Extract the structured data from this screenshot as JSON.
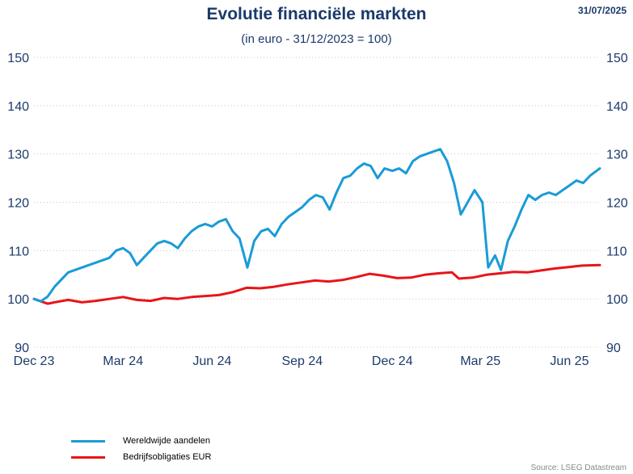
{
  "header": {
    "title": "Evolutie financiële markten",
    "subtitle": "(in euro - 31/12/2023 = 100)",
    "date": "31/07/2025"
  },
  "source": "Source: LSEG Datastream",
  "chart_data": {
    "type": "line",
    "title": "Evolutie financiële markten",
    "subtitle": "(in euro - 31/12/2023 = 100)",
    "xlabel": "",
    "ylabel": "",
    "x_tick_labels": [
      "Dec 23",
      "Mar 24",
      "Jun 24",
      "Sep 24",
      "Dec 24",
      "Mar 25",
      "Jun 25"
    ],
    "x_tick_dates": [
      "2023-12-31",
      "2024-03-31",
      "2024-06-30",
      "2024-09-30",
      "2024-12-31",
      "2025-03-31",
      "2025-06-30"
    ],
    "y_ticks": [
      90,
      100,
      110,
      120,
      130,
      140,
      150
    ],
    "ylim": [
      90,
      150
    ],
    "xlim": [
      "2023-12-31",
      "2025-07-31"
    ],
    "grid": "horizontal dotted",
    "right_axis": true,
    "legend_position": "bottom-left",
    "series": [
      {
        "name": "Wereldwijde aandelen",
        "color": "#1a9bd7",
        "points": [
          [
            "2023-12-31",
            100
          ],
          [
            "2024-01-07",
            99.5
          ],
          [
            "2024-01-14",
            100.5
          ],
          [
            "2024-01-21",
            102.5
          ],
          [
            "2024-01-28",
            104
          ],
          [
            "2024-02-04",
            105.5
          ],
          [
            "2024-02-11",
            106
          ],
          [
            "2024-02-18",
            106.5
          ],
          [
            "2024-02-25",
            107
          ],
          [
            "2024-03-03",
            107.5
          ],
          [
            "2024-03-10",
            108
          ],
          [
            "2024-03-17",
            108.5
          ],
          [
            "2024-03-24",
            110
          ],
          [
            "2024-03-31",
            110.5
          ],
          [
            "2024-04-07",
            109.5
          ],
          [
            "2024-04-14",
            107
          ],
          [
            "2024-04-21",
            108.5
          ],
          [
            "2024-04-28",
            110
          ],
          [
            "2024-05-05",
            111.5
          ],
          [
            "2024-05-12",
            112
          ],
          [
            "2024-05-19",
            111.5
          ],
          [
            "2024-05-26",
            110.5
          ],
          [
            "2024-06-02",
            112.5
          ],
          [
            "2024-06-09",
            114
          ],
          [
            "2024-06-16",
            115
          ],
          [
            "2024-06-23",
            115.5
          ],
          [
            "2024-06-30",
            115
          ],
          [
            "2024-07-07",
            116
          ],
          [
            "2024-07-14",
            116.5
          ],
          [
            "2024-07-21",
            114
          ],
          [
            "2024-07-28",
            112.5
          ],
          [
            "2024-08-05",
            106.5
          ],
          [
            "2024-08-12",
            112
          ],
          [
            "2024-08-19",
            114
          ],
          [
            "2024-08-26",
            114.5
          ],
          [
            "2024-09-02",
            113
          ],
          [
            "2024-09-09",
            115.5
          ],
          [
            "2024-09-16",
            117
          ],
          [
            "2024-09-23",
            118
          ],
          [
            "2024-09-30",
            119
          ],
          [
            "2024-10-07",
            120.5
          ],
          [
            "2024-10-14",
            121.5
          ],
          [
            "2024-10-21",
            121
          ],
          [
            "2024-10-28",
            118.5
          ],
          [
            "2024-11-04",
            122
          ],
          [
            "2024-11-11",
            125
          ],
          [
            "2024-11-18",
            125.5
          ],
          [
            "2024-11-25",
            127
          ],
          [
            "2024-12-02",
            128
          ],
          [
            "2024-12-09",
            127.5
          ],
          [
            "2024-12-16",
            125
          ],
          [
            "2024-12-23",
            127
          ],
          [
            "2024-12-31",
            126.5
          ],
          [
            "2025-01-07",
            127
          ],
          [
            "2025-01-14",
            126
          ],
          [
            "2025-01-21",
            128.5
          ],
          [
            "2025-01-28",
            129.5
          ],
          [
            "2025-02-04",
            130
          ],
          [
            "2025-02-11",
            130.5
          ],
          [
            "2025-02-18",
            131
          ],
          [
            "2025-02-25",
            128.5
          ],
          [
            "2025-03-04",
            124
          ],
          [
            "2025-03-11",
            117.5
          ],
          [
            "2025-03-18",
            120
          ],
          [
            "2025-03-25",
            122.5
          ],
          [
            "2025-04-02",
            120
          ],
          [
            "2025-04-08",
            106.5
          ],
          [
            "2025-04-15",
            109
          ],
          [
            "2025-04-21",
            106
          ],
          [
            "2025-04-28",
            112
          ],
          [
            "2025-05-05",
            115
          ],
          [
            "2025-05-12",
            118.5
          ],
          [
            "2025-05-19",
            121.5
          ],
          [
            "2025-05-26",
            120.5
          ],
          [
            "2025-06-02",
            121.5
          ],
          [
            "2025-06-09",
            122
          ],
          [
            "2025-06-16",
            121.5
          ],
          [
            "2025-06-23",
            122.5
          ],
          [
            "2025-06-30",
            123.5
          ],
          [
            "2025-07-07",
            124.5
          ],
          [
            "2025-07-14",
            124
          ],
          [
            "2025-07-21",
            125.5
          ],
          [
            "2025-07-31",
            127
          ]
        ]
      },
      {
        "name": "Bedrijfsobligaties EUR",
        "color": "#e8141a",
        "points": [
          [
            "2023-12-31",
            100
          ],
          [
            "2024-01-07",
            99.5
          ],
          [
            "2024-01-14",
            99
          ],
          [
            "2024-01-21",
            99.3
          ],
          [
            "2024-02-04",
            99.8
          ],
          [
            "2024-02-18",
            99.3
          ],
          [
            "2024-03-03",
            99.6
          ],
          [
            "2024-03-17",
            100
          ],
          [
            "2024-03-31",
            100.4
          ],
          [
            "2024-04-14",
            99.8
          ],
          [
            "2024-04-28",
            99.6
          ],
          [
            "2024-05-12",
            100.2
          ],
          [
            "2024-05-26",
            100
          ],
          [
            "2024-06-09",
            100.4
          ],
          [
            "2024-06-23",
            100.6
          ],
          [
            "2024-07-07",
            100.8
          ],
          [
            "2024-07-21",
            101.4
          ],
          [
            "2024-08-04",
            102.3
          ],
          [
            "2024-08-18",
            102.2
          ],
          [
            "2024-09-01",
            102.5
          ],
          [
            "2024-09-15",
            103
          ],
          [
            "2024-09-29",
            103.4
          ],
          [
            "2024-10-13",
            103.8
          ],
          [
            "2024-10-27",
            103.6
          ],
          [
            "2024-11-10",
            103.9
          ],
          [
            "2024-11-24",
            104.5
          ],
          [
            "2024-12-08",
            105.2
          ],
          [
            "2024-12-22",
            104.8
          ],
          [
            "2025-01-05",
            104.3
          ],
          [
            "2025-01-19",
            104.4
          ],
          [
            "2025-02-02",
            105
          ],
          [
            "2025-02-16",
            105.3
          ],
          [
            "2025-03-02",
            105.5
          ],
          [
            "2025-03-09",
            104.2
          ],
          [
            "2025-03-23",
            104.4
          ],
          [
            "2025-04-06",
            105
          ],
          [
            "2025-04-20",
            105.3
          ],
          [
            "2025-05-04",
            105.6
          ],
          [
            "2025-05-18",
            105.5
          ],
          [
            "2025-06-01",
            105.9
          ],
          [
            "2025-06-15",
            106.3
          ],
          [
            "2025-06-29",
            106.6
          ],
          [
            "2025-07-13",
            106.9
          ],
          [
            "2025-07-31",
            107
          ]
        ]
      }
    ]
  }
}
